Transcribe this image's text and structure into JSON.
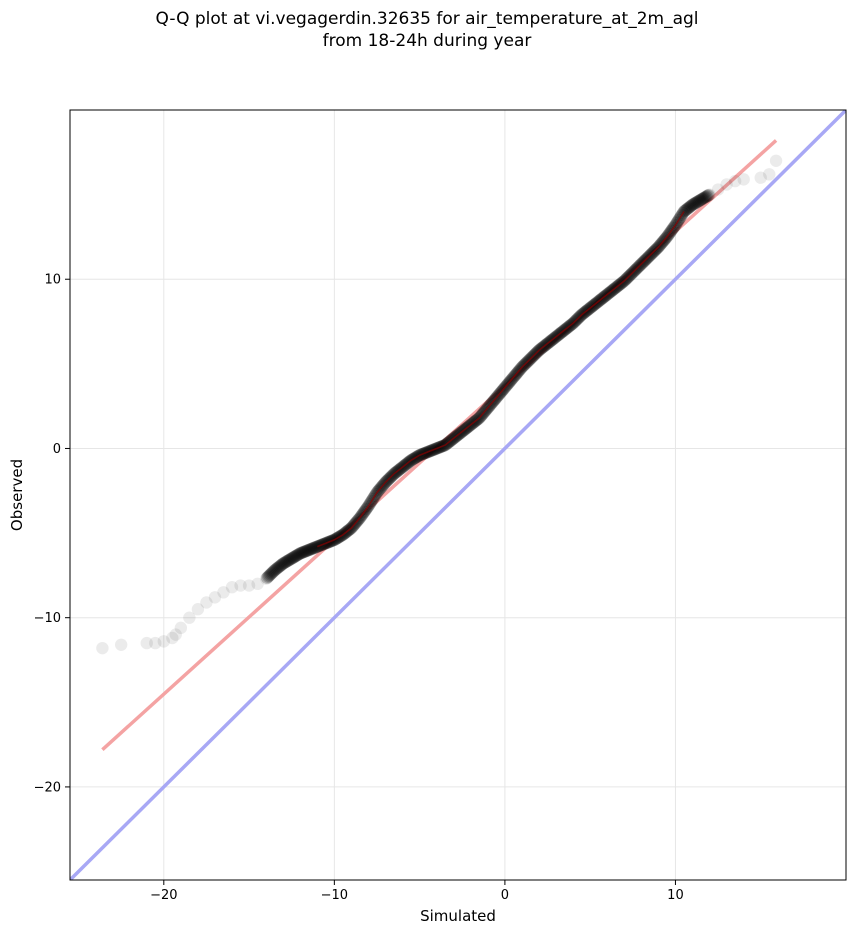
{
  "chart_data": {
    "type": "scatter",
    "title": "Q-Q plot at vi.vegagerdin.32635 for air_temperature_at_2m_agl",
    "subtitle": "from 18-24h during year",
    "xlabel": "Simulated",
    "ylabel": "Observed",
    "xlim": [
      -25.5,
      20
    ],
    "ylim": [
      -25.5,
      20
    ],
    "xticks": [
      -20,
      -10,
      0,
      10
    ],
    "yticks": [
      -20,
      -10,
      0,
      10
    ],
    "xtick_labels": [
      "−20",
      "−10",
      "0",
      "10"
    ],
    "ytick_labels": [
      "−20",
      "−10",
      "0",
      "10"
    ],
    "grid": true,
    "legend": "none",
    "colors": {
      "points": "#000000",
      "fit_line": "#f4a3a3",
      "identity_line": "#a8a8f5",
      "inner_line": "#8b0000"
    },
    "quantiles": {
      "x": [
        -23.6,
        -22.5,
        -21.0,
        -20.5,
        -20.0,
        -19.5,
        -19.3,
        -19.0,
        -18.5,
        -18.0,
        -17.5,
        -17.0,
        -16.5,
        -16.0,
        -15.5,
        -15.0,
        -14.5,
        -14.0,
        -13.5,
        -13.0,
        -12.5,
        -12.0,
        -11.5,
        -11.0,
        -10.5,
        -10.0,
        -9.5,
        -9.0,
        -8.5,
        -8.0,
        -7.5,
        -7.0,
        -6.5,
        -6.0,
        -5.5,
        -5.0,
        -4.5,
        -4.0,
        -3.5,
        -3.0,
        -2.5,
        -2.0,
        -1.5,
        -1.0,
        -0.5,
        0.0,
        0.5,
        1.0,
        1.5,
        2.0,
        2.5,
        3.0,
        3.5,
        4.0,
        4.5,
        5.0,
        5.5,
        6.0,
        6.5,
        7.0,
        7.5,
        8.0,
        8.5,
        9.0,
        9.5,
        10.0,
        10.5,
        11.0,
        11.5,
        12.0,
        12.5,
        13.0,
        13.5,
        14.0,
        15.0,
        15.5,
        15.9
      ],
      "y": [
        -11.8,
        -11.6,
        -11.5,
        -11.5,
        -11.4,
        -11.2,
        -11.0,
        -10.6,
        -10.0,
        -9.5,
        -9.1,
        -8.8,
        -8.5,
        -8.2,
        -8.1,
        -8.1,
        -8.0,
        -7.7,
        -7.2,
        -6.8,
        -6.5,
        -6.2,
        -6.0,
        -5.8,
        -5.6,
        -5.4,
        -5.1,
        -4.7,
        -4.1,
        -3.4,
        -2.6,
        -2.0,
        -1.5,
        -1.1,
        -0.7,
        -0.4,
        -0.2,
        0.0,
        0.2,
        0.6,
        1.0,
        1.4,
        1.8,
        2.4,
        3.0,
        3.6,
        4.2,
        4.8,
        5.3,
        5.8,
        6.2,
        6.6,
        7.0,
        7.4,
        7.9,
        8.3,
        8.7,
        9.1,
        9.5,
        9.9,
        10.4,
        10.9,
        11.4,
        11.9,
        12.5,
        13.2,
        14.0,
        14.4,
        14.7,
        15.0,
        15.3,
        15.6,
        15.8,
        15.9,
        16.0,
        16.2,
        17.0
      ]
    },
    "fit_line": {
      "x": [
        -23.6,
        15.9
      ],
      "y": [
        -17.8,
        18.2
      ]
    },
    "identity_line": {
      "x": [
        -25.5,
        20
      ],
      "y": [
        -25.5,
        20
      ]
    }
  }
}
